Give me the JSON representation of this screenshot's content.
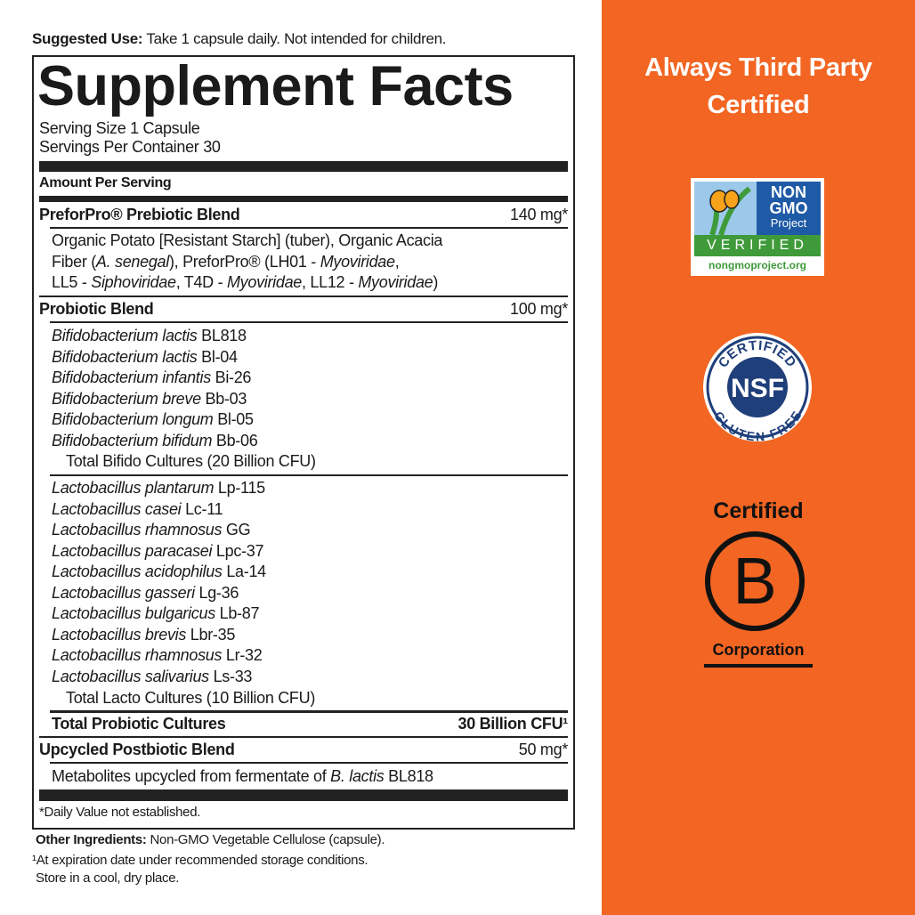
{
  "suggested_use": {
    "label": "Suggested Use:",
    "text": " Take 1 capsule daily. Not intended for children."
  },
  "facts": {
    "title": "Supplement Facts",
    "serving_size": "Serving Size 1 Capsule",
    "servings_per_container": "Servings Per Container 30",
    "amount_per_serving": "Amount Per Serving",
    "prebiotic": {
      "name": "PreforPro® Prebiotic Blend",
      "amount": "140 mg*",
      "lines": [
        [
          {
            "t": "Organic Potato [Resistant Starch] (tuber), Organic Acacia"
          }
        ],
        [
          {
            "t": "Fiber ("
          },
          {
            "t": "A. senegal",
            "i": true
          },
          {
            "t": "), PreforPro® (LH01 - "
          },
          {
            "t": "Myoviridae",
            "i": true
          },
          {
            "t": ","
          }
        ],
        [
          {
            "t": "LL5 - "
          },
          {
            "t": "Siphoviridae",
            "i": true
          },
          {
            "t": ", T4D - "
          },
          {
            "t": "Myoviridae",
            "i": true
          },
          {
            "t": ", LL12 - "
          },
          {
            "t": "Myoviridae",
            "i": true
          },
          {
            "t": ")"
          }
        ]
      ]
    },
    "probiotic": {
      "name": "Probiotic Blend",
      "amount": "100 mg*",
      "bifido": [
        {
          "species": "Bifidobacterium lactis",
          "strain": "BL818"
        },
        {
          "species": "Bifidobacterium lactis",
          "strain": "Bl-04"
        },
        {
          "species": "Bifidobacterium infantis",
          "strain": "Bi-26"
        },
        {
          "species": "Bifidobacterium breve",
          "strain": "Bb-03"
        },
        {
          "species": "Bifidobacterium longum",
          "strain": "Bl-05"
        },
        {
          "species": "Bifidobacterium bifidum",
          "strain": "Bb-06"
        }
      ],
      "bifido_total": "Total Bifido Cultures (20 Billion CFU)",
      "lacto": [
        {
          "species": "Lactobacillus plantarum",
          "strain": "Lp-115"
        },
        {
          "species": "Lactobacillus casei",
          "strain": "Lc-11"
        },
        {
          "species": "Lactobacillus rhamnosus",
          "strain": "GG"
        },
        {
          "species": "Lactobacillus paracasei",
          "strain": "Lpc-37"
        },
        {
          "species": "Lactobacillus acidophilus",
          "strain": "La-14"
        },
        {
          "species": "Lactobacillus gasseri",
          "strain": "Lg-36"
        },
        {
          "species": "Lactobacillus bulgaricus",
          "strain": "Lb-87"
        },
        {
          "species": "Lactobacillus brevis",
          "strain": "Lbr-35"
        },
        {
          "species": "Lactobacillus rhamnosus",
          "strain": "Lr-32"
        },
        {
          "species": "Lactobacillus salivarius",
          "strain": "Ls-33"
        }
      ],
      "lacto_total": "Total Lacto Cultures (10 Billion CFU)",
      "total_label": "Total Probiotic Cultures",
      "total_amount": "30 Billion CFU¹"
    },
    "postbiotic": {
      "name": "Upcycled Postbiotic Blend",
      "amount": "50 mg*",
      "line": [
        {
          "t": "Metabolites upcycled from fermentate of "
        },
        {
          "t": "B. lactis",
          "i": true
        },
        {
          "t": " BL818"
        }
      ]
    },
    "daily_value_note": "*Daily Value not established."
  },
  "other_ingredients": {
    "label": "Other Ingredients:",
    "text": " Non-GMO Vegetable Cellulose (capsule)."
  },
  "footnote": "¹At expiration date under recommended storage conditions.",
  "storage": "Store in a cool, dry place.",
  "panel": {
    "title_line1": "Always Third Party",
    "title_line2": "Certified",
    "background": "#f26522",
    "non_gmo": {
      "l1": "NON",
      "l2": "GMO",
      "l3": "Project",
      "verified": "VERIFIED",
      "url": "nongmoproject.org"
    },
    "nsf": {
      "top": "CERTIFIED",
      "center": "NSF",
      "bottom": "GLUTEN-FREE"
    },
    "bcorp": {
      "top": "Certified",
      "letter": "B",
      "bottom": "Corporation"
    }
  }
}
